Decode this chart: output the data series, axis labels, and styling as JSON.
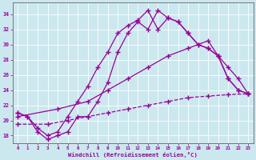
{
  "xlabel": "Windchill (Refroidissement éolien,°C)",
  "bg_color": "#cce8ef",
  "line_color": "#990099",
  "xlim": [
    -0.5,
    23.5
  ],
  "ylim": [
    17.0,
    35.5
  ],
  "xticks": [
    0,
    1,
    2,
    3,
    4,
    5,
    6,
    7,
    8,
    9,
    10,
    11,
    12,
    13,
    14,
    15,
    16,
    17,
    18,
    19,
    20,
    21,
    22,
    23
  ],
  "yticks": [
    18,
    20,
    22,
    24,
    26,
    28,
    30,
    32,
    34
  ],
  "line1_x": [
    0,
    1,
    2,
    3,
    4,
    5,
    6,
    7,
    8,
    9,
    10,
    11,
    12,
    13,
    14,
    15,
    16,
    17,
    18,
    19,
    20,
    21,
    22,
    23
  ],
  "line1_y": [
    21.0,
    20.5,
    19.0,
    18.0,
    18.5,
    20.5,
    22.5,
    24.5,
    27.0,
    29.0,
    31.5,
    32.5,
    33.2,
    34.5,
    32.0,
    33.5,
    33.0,
    31.5,
    30.0,
    29.5,
    28.5,
    25.5,
    24.0,
    23.5
  ],
  "line2_x": [
    0,
    1,
    2,
    3,
    4,
    5,
    6,
    7,
    8,
    9,
    10,
    11,
    12,
    13,
    14,
    15,
    16,
    17,
    18,
    19,
    20,
    21,
    22,
    23
  ],
  "line2_y": [
    21.0,
    20.5,
    18.5,
    17.5,
    18.0,
    18.5,
    20.5,
    20.5,
    22.5,
    25.0,
    29.0,
    31.5,
    33.0,
    32.0,
    34.5,
    33.5,
    33.0,
    31.5,
    30.0,
    29.5,
    28.5,
    25.5,
    24.0,
    23.5
  ],
  "line3_x": [
    0,
    4,
    7,
    9,
    11,
    13,
    15,
    17,
    19,
    20,
    21,
    22,
    23
  ],
  "line3_y": [
    20.5,
    21.5,
    22.5,
    24.0,
    25.5,
    27.0,
    28.5,
    29.5,
    30.5,
    28.5,
    27.0,
    25.5,
    23.5
  ],
  "line4_x": [
    0,
    3,
    5,
    7,
    9,
    11,
    13,
    15,
    17,
    19,
    21,
    23
  ],
  "line4_y": [
    19.5,
    19.5,
    20.0,
    20.5,
    21.0,
    21.5,
    22.0,
    22.5,
    23.0,
    23.2,
    23.4,
    23.5
  ]
}
